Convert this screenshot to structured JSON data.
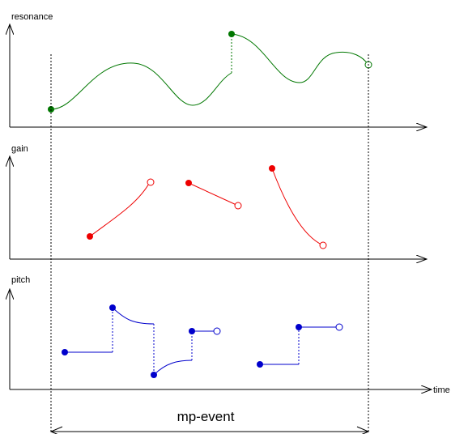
{
  "labels": {
    "resonance": "resonance",
    "gain": "gain",
    "pitch": "pitch",
    "time": "time",
    "event": "mp-event"
  },
  "colors": {
    "axis": "#000000",
    "resonance": "#007700",
    "gain": "#ee0000",
    "pitch": "#0000cc"
  }
}
